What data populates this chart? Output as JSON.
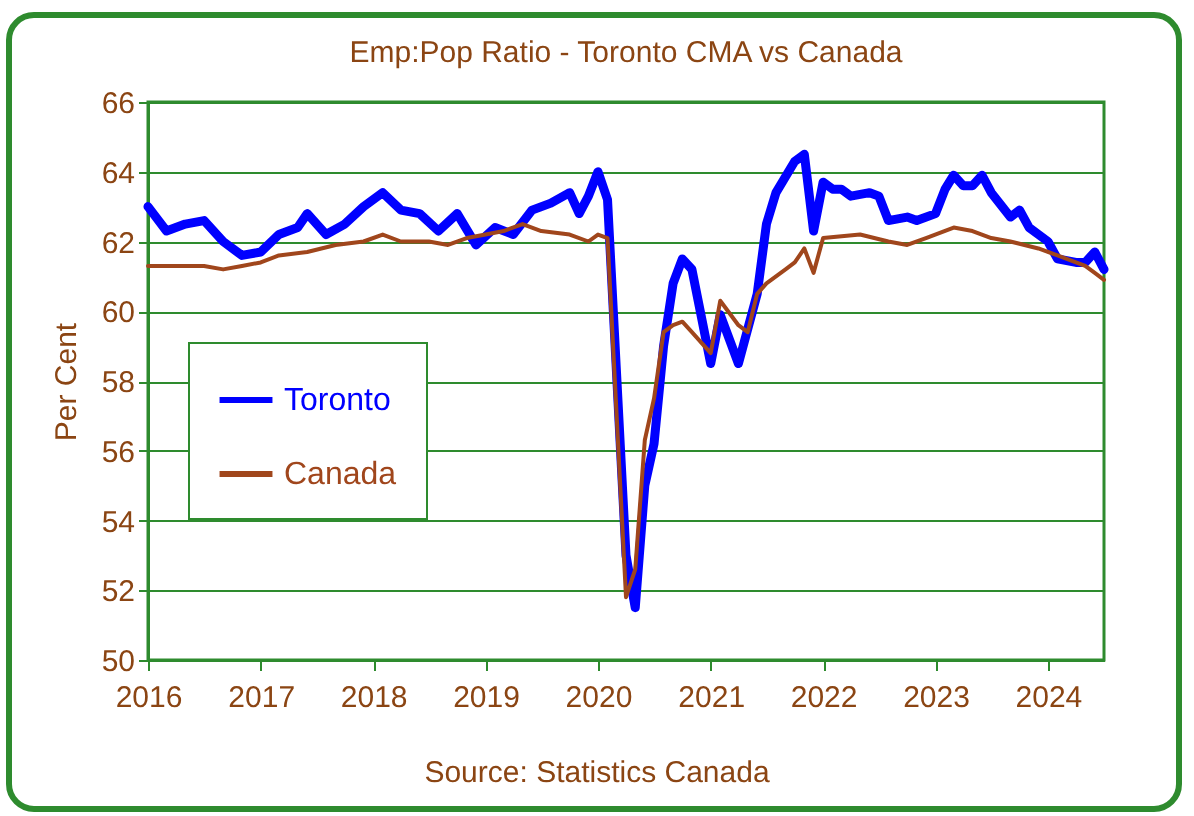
{
  "chart_data": {
    "type": "line",
    "title": "Emp:Pop Ratio - Toronto CMA vs Canada",
    "ylabel": "Per Cent",
    "annotations": [
      "Source:  Statistics Canada"
    ],
    "ylim": [
      50,
      66
    ],
    "yticks": [
      50,
      52,
      54,
      56,
      58,
      60,
      62,
      64,
      66
    ],
    "xlim": [
      "2016-01",
      "2024-07"
    ],
    "xticks": [
      "2016",
      "2017",
      "2018",
      "2019",
      "2020",
      "2021",
      "2022",
      "2023",
      "2024"
    ],
    "grid": "y",
    "legend": "left",
    "line_style": "solid",
    "marker": "none",
    "series": [
      {
        "name": "Toronto",
        "color": "#0000ff",
        "x": [
          "2016-01",
          "2016-03",
          "2016-05",
          "2016-07",
          "2016-09",
          "2016-11",
          "2017-01",
          "2017-03",
          "2017-05",
          "2017-06",
          "2017-08",
          "2017-10",
          "2017-12",
          "2018-02",
          "2018-04",
          "2018-06",
          "2018-08",
          "2018-10",
          "2018-12",
          "2019-02",
          "2019-04",
          "2019-06",
          "2019-08",
          "2019-10",
          "2019-11",
          "2019-12",
          "2020-01",
          "2020-02",
          "2020-04",
          "2020-05",
          "2020-06",
          "2020-07",
          "2020-08",
          "2020-09",
          "2020-10",
          "2020-11",
          "2021-01",
          "2021-02",
          "2021-04",
          "2021-06",
          "2021-07",
          "2021-08",
          "2021-10",
          "2021-11",
          "2021-12",
          "2022-01",
          "2022-02",
          "2022-03",
          "2022-04",
          "2022-06",
          "2022-07",
          "2022-08",
          "2022-10",
          "2022-11",
          "2023-01",
          "2023-02",
          "2023-03",
          "2023-04",
          "2023-05",
          "2023-06",
          "2023-07",
          "2023-09",
          "2023-10",
          "2023-11",
          "2024-01",
          "2024-02",
          "2024-04",
          "2024-05",
          "2024-06",
          "2024-07"
        ],
        "values": [
          63.0,
          62.3,
          62.5,
          62.6,
          62.0,
          61.6,
          61.7,
          62.2,
          62.4,
          62.8,
          62.2,
          62.5,
          63.0,
          63.4,
          62.9,
          62.8,
          62.3,
          62.8,
          61.9,
          62.4,
          62.2,
          62.9,
          63.1,
          63.4,
          62.8,
          63.3,
          64.0,
          63.2,
          53.0,
          51.5,
          55.0,
          56.2,
          59.0,
          60.8,
          61.5,
          61.2,
          58.5,
          59.9,
          58.5,
          60.5,
          62.5,
          63.4,
          64.3,
          64.5,
          62.3,
          63.7,
          63.5,
          63.5,
          63.3,
          63.4,
          63.3,
          62.6,
          62.7,
          62.6,
          62.8,
          63.5,
          63.9,
          63.6,
          63.6,
          63.9,
          63.4,
          62.7,
          62.9,
          62.4,
          62.0,
          61.5,
          61.4,
          61.4,
          61.7,
          61.2
        ]
      },
      {
        "name": "Canada",
        "color": "#a0461c",
        "x": [
          "2016-01",
          "2016-07",
          "2016-09",
          "2016-11",
          "2017-01",
          "2017-03",
          "2017-06",
          "2017-09",
          "2017-12",
          "2018-02",
          "2018-04",
          "2018-07",
          "2018-09",
          "2018-11",
          "2019-01",
          "2019-03",
          "2019-05",
          "2019-07",
          "2019-10",
          "2019-12",
          "2020-01",
          "2020-02",
          "2020-04",
          "2020-05",
          "2020-06",
          "2020-07",
          "2020-08",
          "2020-09",
          "2020-10",
          "2020-11",
          "2021-01",
          "2021-02",
          "2021-04",
          "2021-05",
          "2021-06",
          "2021-07",
          "2021-09",
          "2021-10",
          "2021-11",
          "2021-12",
          "2022-01",
          "2022-05",
          "2022-08",
          "2022-10",
          "2022-12",
          "2023-03",
          "2023-05",
          "2023-07",
          "2023-09",
          "2023-12",
          "2024-02",
          "2024-04",
          "2024-05",
          "2024-06",
          "2024-07"
        ],
        "values": [
          61.3,
          61.3,
          61.2,
          61.3,
          61.4,
          61.6,
          61.7,
          61.9,
          62.0,
          62.2,
          62.0,
          62.0,
          61.9,
          62.1,
          62.2,
          62.3,
          62.5,
          62.3,
          62.2,
          62.0,
          62.2,
          62.1,
          51.8,
          52.6,
          56.3,
          57.5,
          59.4,
          59.6,
          59.7,
          59.4,
          58.8,
          60.3,
          59.6,
          59.4,
          60.5,
          60.8,
          61.2,
          61.4,
          61.8,
          61.1,
          62.1,
          62.2,
          62.0,
          61.9,
          62.1,
          62.4,
          62.3,
          62.1,
          62.0,
          61.8,
          61.6,
          61.4,
          61.3,
          61.1,
          60.9
        ]
      }
    ]
  }
}
